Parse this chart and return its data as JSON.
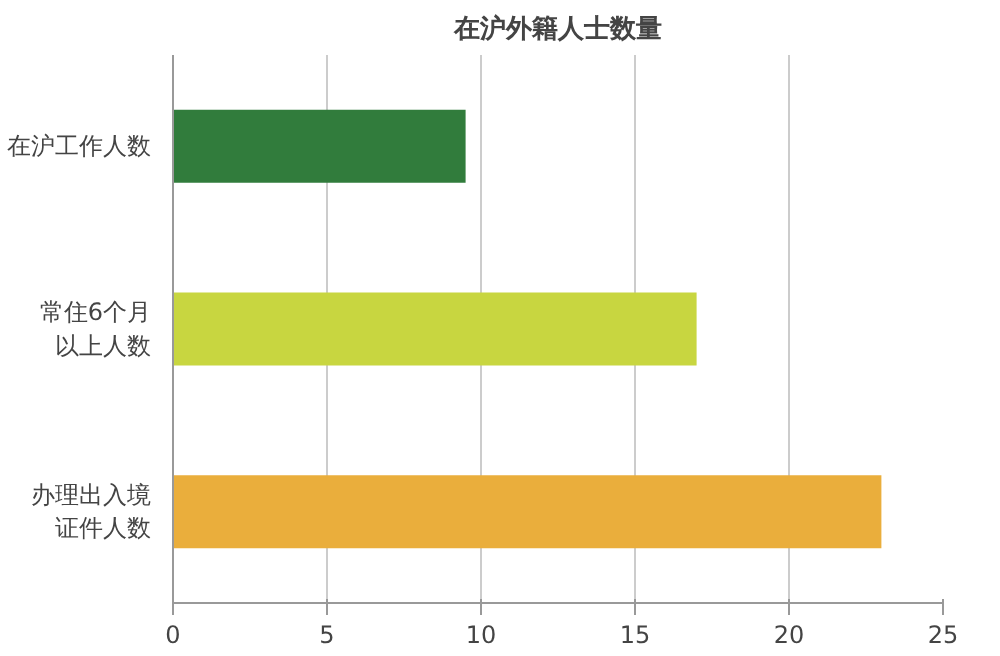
{
  "chart_data": {
    "type": "bar",
    "orientation": "horizontal",
    "title": "在沪外籍人士数量",
    "categories": [
      "在沪工作人数",
      "常住6个月以上人数",
      "办理出入境证件人数"
    ],
    "values": [
      9.5,
      17,
      23
    ],
    "colors": [
      "#317c3c",
      "#c8d640",
      "#eaae3c"
    ],
    "xlim": [
      0,
      25
    ],
    "xticks": [
      0,
      5,
      10,
      15,
      20,
      25
    ],
    "grid": "x"
  }
}
